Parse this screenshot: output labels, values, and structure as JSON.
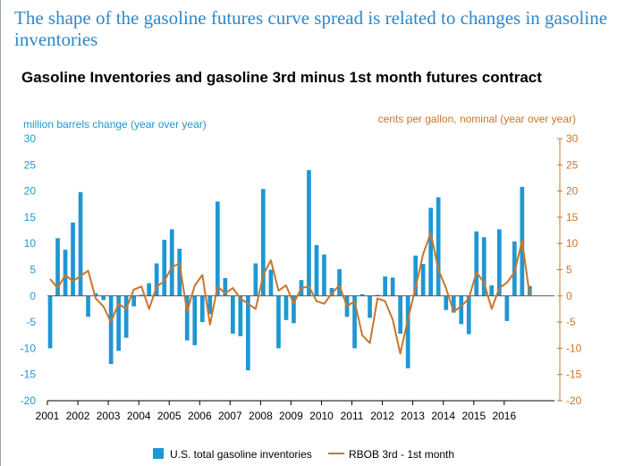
{
  "headline": "The shape of the gasoline futures curve spread is related to changes in gasoline inventories",
  "chart_data": {
    "type": "bar+line",
    "title": "Gasoline Inventories and gasoline 3rd minus 1st month futures contract",
    "left_axis_label": "million barrels change (year over year)",
    "right_axis_label": "cents per gallon, nominal (year over year)",
    "ylim_left": [
      -20,
      30
    ],
    "ylim_right": [
      -20,
      30
    ],
    "y_ticks": [
      "30",
      "25",
      "20",
      "15",
      "10",
      "5",
      "0",
      "-5",
      "-10",
      "-15",
      "-20"
    ],
    "x_ticks": [
      "2001",
      "2002",
      "2003",
      "2004",
      "2005",
      "2006",
      "2007",
      "2008",
      "2009",
      "2010",
      "2011",
      "2012",
      "2013",
      "2014",
      "2015",
      "2016"
    ],
    "colors": {
      "bars": "#1f97d3",
      "line": "#c8762c",
      "left_axis": "#1f97d3",
      "right_axis": "#c8762c"
    },
    "bar_series": {
      "name": "U.S. total gasoline inventories",
      "x": [
        2001.0,
        2001.25,
        2001.5,
        2001.75,
        2002.0,
        2002.25,
        2002.5,
        2002.75,
        2003.0,
        2003.25,
        2003.5,
        2003.75,
        2004.0,
        2004.25,
        2004.5,
        2004.75,
        2005.0,
        2005.25,
        2005.5,
        2005.75,
        2006.0,
        2006.25,
        2006.5,
        2006.75,
        2007.0,
        2007.25,
        2007.5,
        2007.75,
        2008.0,
        2008.25,
        2008.5,
        2008.75,
        2009.0,
        2009.25,
        2009.5,
        2009.75,
        2010.0,
        2010.25,
        2010.5,
        2010.75,
        2011.0,
        2011.25,
        2011.5,
        2011.75,
        2012.0,
        2012.25,
        2012.5,
        2012.75,
        2013.0,
        2013.25,
        2013.5,
        2013.75,
        2014.0,
        2014.25,
        2014.5,
        2014.75,
        2015.0,
        2015.25,
        2015.5,
        2015.75,
        2016.0,
        2016.25,
        2016.5,
        2016.75
      ],
      "values": [
        -10.0,
        11.0,
        8.8,
        14.0,
        19.8,
        -4.0,
        0.5,
        -0.8,
        -13.0,
        -10.5,
        -8.0,
        -2.0,
        0.2,
        2.4,
        6.2,
        10.7,
        12.7,
        9.0,
        -8.5,
        -9.4,
        -5.0,
        -3.5,
        18.0,
        3.4,
        -7.2,
        -7.7,
        -14.2,
        6.2,
        20.4,
        5.0,
        -10.0,
        -4.6,
        -5.2,
        3.0,
        24.0,
        9.7,
        7.9,
        1.5,
        5.1,
        -4.0,
        -10.0,
        0.3,
        -4.2,
        0.2,
        3.7,
        3.5,
        -7.2,
        -13.8,
        7.7,
        6.1,
        16.8,
        18.8,
        -2.7,
        -3.2,
        -5.4,
        -7.3,
        12.3,
        11.2,
        2.0,
        12.7,
        -4.8,
        10.4,
        20.8,
        1.9
      ]
    },
    "line_series": {
      "name": "RBOB 3rd - 1st month",
      "x": [
        2001.0,
        2001.25,
        2001.5,
        2001.75,
        2002.0,
        2002.25,
        2002.5,
        2002.75,
        2003.0,
        2003.25,
        2003.5,
        2003.75,
        2004.0,
        2004.25,
        2004.5,
        2004.75,
        2005.0,
        2005.25,
        2005.5,
        2005.75,
        2006.0,
        2006.25,
        2006.5,
        2006.75,
        2007.0,
        2007.25,
        2007.5,
        2007.75,
        2008.0,
        2008.25,
        2008.5,
        2008.75,
        2009.0,
        2009.25,
        2009.5,
        2009.75,
        2010.0,
        2010.25,
        2010.5,
        2010.75,
        2011.0,
        2011.25,
        2011.5,
        2011.75,
        2012.0,
        2012.25,
        2012.5,
        2012.75,
        2013.0,
        2013.25,
        2013.5,
        2013.75,
        2014.0,
        2014.25,
        2014.5,
        2014.75,
        2015.0,
        2015.25,
        2015.5,
        2015.75,
        2016.0,
        2016.25,
        2016.5,
        2016.75
      ],
      "values": [
        3.2,
        1.5,
        4.0,
        2.8,
        3.8,
        4.8,
        -0.5,
        -2.0,
        -5.0,
        -1.5,
        -2.5,
        1.2,
        1.8,
        -2.5,
        1.8,
        2.8,
        5.5,
        6.2,
        -3.0,
        2.0,
        4.0,
        -5.5,
        1.8,
        0.5,
        1.5,
        -0.5,
        -1.5,
        -2.5,
        4.0,
        6.8,
        1.0,
        2.0,
        -1.5,
        1.5,
        1.8,
        -1.0,
        -1.5,
        0.5,
        2.0,
        -2.0,
        -1.0,
        -7.5,
        -9.0,
        -0.5,
        -1.0,
        -4.5,
        -11.0,
        -4.5,
        1.5,
        8.0,
        12.0,
        5.0,
        1.5,
        -3.0,
        -2.0,
        -0.5,
        4.5,
        2.5,
        -2.5,
        1.5,
        2.5,
        4.5,
        10.5,
        0.0
      ]
    },
    "legend": [
      "U.S. total gasoline inventories",
      "RBOB 3rd - 1st month"
    ],
    "legend_position": "bottom-center",
    "grid": false
  }
}
